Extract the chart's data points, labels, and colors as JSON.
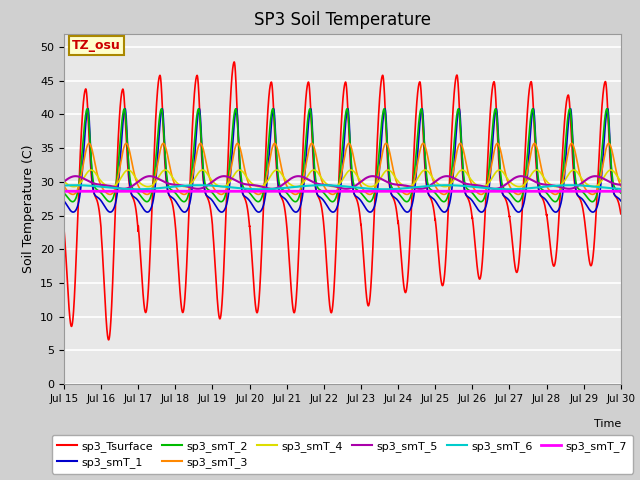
{
  "title": "SP3 Soil Temperature",
  "xlabel": "Time",
  "ylabel": "Soil Temperature (C)",
  "ylim": [
    0,
    52
  ],
  "xlim": [
    0,
    360
  ],
  "fig_bg": "#d0d0d0",
  "plot_bg": "#e8e8e8",
  "annotation_text": "TZ_osu",
  "annotation_bg": "#ffffcc",
  "annotation_border": "#aa8800",
  "series_colors": {
    "sp3_Tsurface": "#ff0000",
    "sp3_smT_1": "#0000cc",
    "sp3_smT_2": "#00bb00",
    "sp3_smT_3": "#ff8800",
    "sp3_smT_4": "#dddd00",
    "sp3_smT_5": "#aa00aa",
    "sp3_smT_6": "#00cccc",
    "sp3_smT_7": "#ff00ff"
  },
  "xtick_labels": [
    "Jul 15",
    "Jul 16",
    "Jul 17",
    "Jul 18",
    "Jul 19",
    "Jul 20",
    "Jul 21",
    "Jul 22",
    "Jul 23",
    "Jul 24",
    "Jul 25",
    "Jul 26",
    "Jul 27",
    "Jul 28",
    "Jul 29",
    "Jul 30"
  ],
  "xtick_positions": [
    0,
    24,
    48,
    72,
    96,
    120,
    144,
    168,
    192,
    216,
    240,
    264,
    288,
    312,
    336,
    360
  ],
  "ytick_positions": [
    0,
    5,
    10,
    15,
    20,
    25,
    30,
    35,
    40,
    45,
    50
  ]
}
